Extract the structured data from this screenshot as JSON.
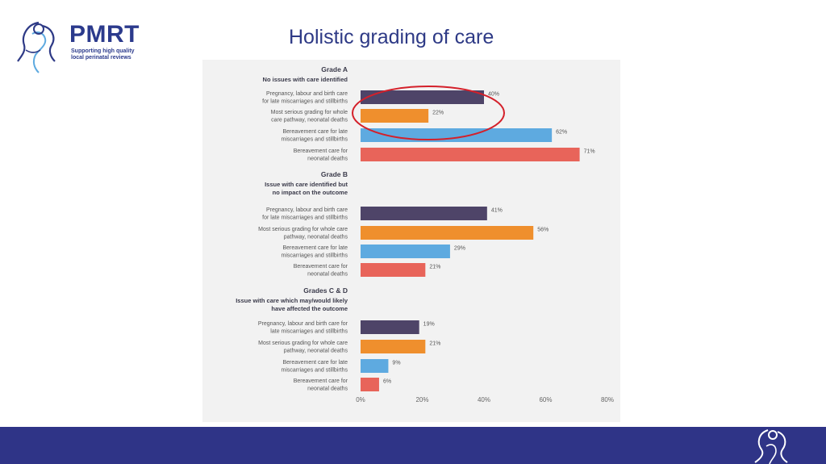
{
  "logo": {
    "name": "PMRT",
    "tagline_lines": [
      "Supporting high quality",
      "local perinatal reviews"
    ]
  },
  "slide_title": "Holistic grading of care",
  "colors": {
    "brand_blue": "#2e3a86",
    "footer_band": "#2f3487",
    "panel_bg": "#f2f2f2",
    "highlight_ellipse": "#d4202a",
    "bar_purple": "#4e4468",
    "bar_orange": "#ef8f2d",
    "bar_blue": "#5eaae0",
    "bar_red": "#e8645a"
  },
  "chart_data": {
    "type": "bar",
    "orientation": "horizontal",
    "xlim": [
      0,
      80
    ],
    "x_ticks": [
      "0%",
      "20%",
      "40%",
      "60%",
      "80%"
    ],
    "grid": false,
    "highlight_note": "Red ellipse circles the first two bars of Grade A",
    "groups": [
      {
        "title": "Grade A",
        "subtitle_lines": [
          "No issues with care identified"
        ],
        "bars": [
          {
            "label_lines": [
              "Pregnancy, labour and birth care",
              "for late miscarriages and stillbirths"
            ],
            "value": 40,
            "value_label": "40%",
            "color": "#4e4468"
          },
          {
            "label_lines": [
              "Most serious grading for whole",
              "care pathway, neonatal deaths"
            ],
            "value": 22,
            "value_label": "22%",
            "color": "#ef8f2d"
          },
          {
            "label_lines": [
              "Bereavement care for late",
              "miscarriages and stillbirths"
            ],
            "value": 62,
            "value_label": "62%",
            "color": "#5eaae0"
          },
          {
            "label_lines": [
              "Bereavement care for",
              "neonatal deaths"
            ],
            "value": 71,
            "value_label": "71%",
            "color": "#e8645a"
          }
        ]
      },
      {
        "title": "Grade B",
        "subtitle_lines": [
          "Issue with care identified but",
          "no impact on the outcome"
        ],
        "bars": [
          {
            "label_lines": [
              "Pregnancy, labour and birth care",
              "for late miscarriages and stillbirths"
            ],
            "value": 41,
            "value_label": "41%",
            "color": "#4e4468"
          },
          {
            "label_lines": [
              "Most serious grading for whole care",
              "pathway, neonatal deaths"
            ],
            "value": 56,
            "value_label": "56%",
            "color": "#ef8f2d"
          },
          {
            "label_lines": [
              "Bereavement care for late",
              "miscarriages and stillbirths"
            ],
            "value": 29,
            "value_label": "29%",
            "color": "#5eaae0"
          },
          {
            "label_lines": [
              "Bereavement care for",
              "neonatal deaths"
            ],
            "value": 21,
            "value_label": "21%",
            "color": "#e8645a"
          }
        ]
      },
      {
        "title": "Grades C & D",
        "subtitle_lines": [
          "Issue with care which may/would likely",
          "have affected the outcome"
        ],
        "bars": [
          {
            "label_lines": [
              "Pregnancy, labour and birth care for",
              "late miscarriages and stillbirths"
            ],
            "value": 19,
            "value_label": "19%",
            "color": "#4e4468"
          },
          {
            "label_lines": [
              "Most serious grading for whole care",
              "pathway, neonatal deaths"
            ],
            "value": 21,
            "value_label": "21%",
            "color": "#ef8f2d"
          },
          {
            "label_lines": [
              "Bereavement care for late",
              "miscarriages and stillbirths"
            ],
            "value": 9,
            "value_label": "9%",
            "color": "#5eaae0"
          },
          {
            "label_lines": [
              "Bereavement care for",
              "neonatal deaths"
            ],
            "value": 6,
            "value_label": "6%",
            "color": "#e8645a"
          }
        ]
      }
    ]
  }
}
